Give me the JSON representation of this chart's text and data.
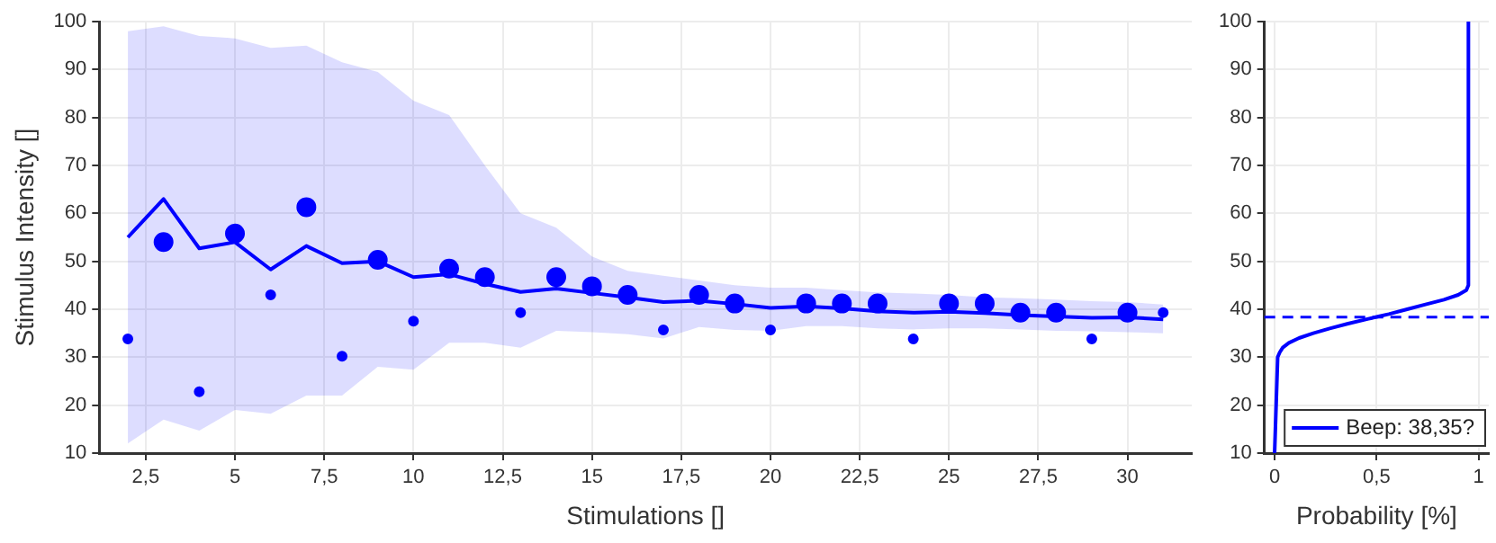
{
  "chart_data": [
    {
      "type": "line",
      "xlabel": "Stimulations []",
      "ylabel": "Stimulus Intensity []",
      "xlim": [
        1.2,
        31.8
      ],
      "xticks": [
        {
          "value": 2.5,
          "label": "2,5"
        },
        5,
        {
          "value": 7.5,
          "label": "7,5"
        },
        10,
        {
          "value": 12.5,
          "label": "12,5"
        },
        15,
        {
          "value": 17.5,
          "label": "17,5"
        },
        20,
        {
          "value": 22.5,
          "label": "22,5"
        },
        25,
        {
          "value": 27.5,
          "label": "27,5"
        },
        30
      ],
      "ylim": [
        10,
        100
      ],
      "yticks": [
        10,
        20,
        30,
        40,
        50,
        60,
        70,
        80,
        90,
        100
      ],
      "grid": true,
      "series": [
        {
          "color": "#0000ff",
          "marker": "none",
          "x": [
            2,
            3,
            4,
            5,
            6,
            7,
            8,
            9,
            10,
            11,
            12,
            13,
            14,
            15,
            16,
            17,
            18,
            19,
            20,
            21,
            22,
            23,
            24,
            25,
            26,
            27,
            28,
            29,
            30,
            31
          ],
          "values": [
            55,
            63,
            52.7,
            54,
            48.3,
            53.2,
            49.6,
            50,
            46.7,
            47.3,
            45.3,
            43.6,
            44.3,
            43.4,
            42.5,
            41.5,
            41.8,
            41.1,
            40.3,
            40.6,
            40.2,
            39.6,
            39.3,
            39.5,
            39.2,
            38.8,
            38.5,
            38.2,
            38.3,
            37.9
          ],
          "upper": [
            98,
            99,
            97,
            96.5,
            94.5,
            95,
            91.5,
            89.5,
            83.5,
            80.5,
            70,
            60,
            57,
            51,
            48,
            47,
            46,
            45,
            44.5,
            44.5,
            44,
            43.5,
            43.3,
            43,
            42.5,
            42.3,
            42,
            41.7,
            41.5,
            41
          ],
          "lower": [
            12,
            17,
            14.7,
            19,
            18.2,
            22,
            22,
            28,
            27.4,
            33,
            33,
            32,
            35.5,
            35.2,
            34.8,
            33.9,
            36.3,
            35.7,
            35.5,
            36.5,
            36.5,
            36,
            35.8,
            36,
            36,
            35.8,
            35.5,
            35.4,
            35.2,
            35
          ]
        },
        {
          "type": "scatter",
          "color": "#0000ff",
          "marker": "circle",
          "x": [
            3,
            5,
            7,
            9,
            11,
            12,
            14,
            15,
            16,
            18,
            19,
            21,
            22,
            23,
            25,
            26,
            27,
            28,
            30
          ],
          "values": [
            54,
            55.8,
            61.3,
            50.3,
            48.5,
            46.7,
            46.7,
            44.8,
            43,
            43,
            41.2,
            41.2,
            41.2,
            41.2,
            41.2,
            41.2,
            39.3,
            39.3,
            39.3
          ]
        },
        {
          "type": "scatter",
          "color": "#0000ff",
          "marker": "circle",
          "x": [
            2,
            4,
            6,
            8,
            10,
            13,
            17,
            20,
            24,
            29,
            31
          ],
          "values": [
            33.8,
            22.8,
            43,
            30.2,
            37.5,
            39.3,
            35.7,
            35.7,
            33.8,
            33.8,
            39.3
          ]
        }
      ]
    },
    {
      "type": "line",
      "xlabel": "Probability [%]",
      "xlim": [
        -0.05,
        1.05
      ],
      "xticks": [
        0,
        {
          "value": 0.5,
          "label": "0,5"
        },
        1
      ],
      "ylim": [
        10,
        100
      ],
      "yticks": [
        10,
        20,
        30,
        40,
        50,
        60,
        70,
        80,
        90,
        100
      ],
      "grid": true,
      "legend": "bottom right",
      "marker": "none",
      "ref_lines": [
        {
          "axis": "y",
          "value": 38.35,
          "color": "#0000ff",
          "line_style": "dashed"
        }
      ],
      "series": [
        {
          "name": "Beep: 38,35?",
          "color": "#0000ff",
          "x": [
            0,
            0.015,
            0.025,
            0.04,
            0.07,
            0.12,
            0.19,
            0.27,
            0.36,
            0.46,
            0.5,
            0.56,
            0.65,
            0.74,
            0.83,
            0.9,
            0.94,
            0.95,
            0.95
          ],
          "values": [
            10,
            30,
            31,
            32,
            33,
            34,
            35,
            36,
            37,
            38,
            38.4,
            39,
            40,
            41,
            42,
            43,
            44,
            45,
            100
          ]
        }
      ]
    }
  ]
}
